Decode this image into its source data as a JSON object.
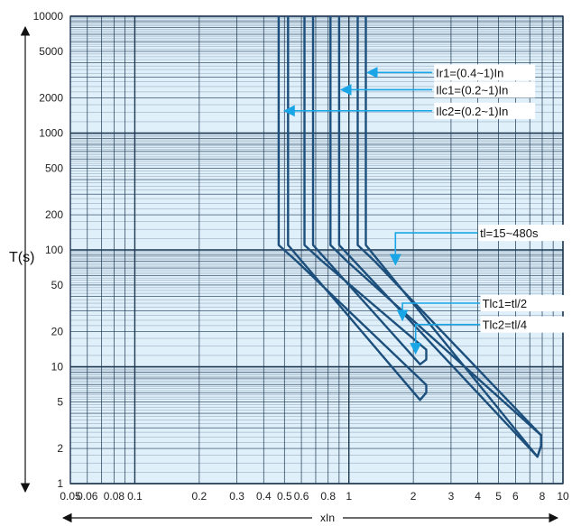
{
  "chart_data": {
    "type": "line",
    "title": "",
    "xlabel": "xIn",
    "ylabel": "T(s)",
    "x_scale": "log",
    "y_scale": "log",
    "xlim": [
      0.05,
      10
    ],
    "ylim": [
      1,
      10000
    ],
    "grid": true,
    "x_ticks": [
      {
        "v": 0.05,
        "label": "0.05"
      },
      {
        "v": 0.06,
        "label": "0.06"
      },
      {
        "v": 0.08,
        "label": "0.08"
      },
      {
        "v": 0.1,
        "label": "0.1"
      },
      {
        "v": 0.2,
        "label": "0.2"
      },
      {
        "v": 0.3,
        "label": "0.3"
      },
      {
        "v": 0.4,
        "label": "0.4"
      },
      {
        "v": 0.5,
        "label": "0.5"
      },
      {
        "v": 0.6,
        "label": "0.6"
      },
      {
        "v": 0.8,
        "label": "0.8"
      },
      {
        "v": 1,
        "label": "1"
      },
      {
        "v": 2,
        "label": "2"
      },
      {
        "v": 3,
        "label": "3"
      },
      {
        "v": 4,
        "label": "4"
      },
      {
        "v": 5,
        "label": "5"
      },
      {
        "v": 6,
        "label": "6"
      },
      {
        "v": 8,
        "label": "8"
      },
      {
        "v": 10,
        "label": "10"
      }
    ],
    "y_ticks": [
      {
        "v": 1,
        "label": "1"
      },
      {
        "v": 2,
        "label": "2"
      },
      {
        "v": 5,
        "label": "5"
      },
      {
        "v": 10,
        "label": "10"
      },
      {
        "v": 20,
        "label": "20"
      },
      {
        "v": 50,
        "label": "50"
      },
      {
        "v": 100,
        "label": "100"
      },
      {
        "v": 200,
        "label": "200"
      },
      {
        "v": 500,
        "label": "500"
      },
      {
        "v": 1000,
        "label": "1000"
      },
      {
        "v": 2000,
        "label": "2000"
      },
      {
        "v": 5000,
        "label": "5000"
      },
      {
        "v": 10000,
        "label": "10000"
      }
    ],
    "bands": [
      {
        "points": [
          [
            0.47,
            10000
          ],
          [
            0.47,
            110
          ],
          [
            0.57,
            80
          ],
          [
            2.3,
            7.0
          ],
          [
            2.3,
            6.0
          ],
          [
            2.15,
            5.2
          ],
          [
            0.52,
            110
          ],
          [
            0.52,
            10000
          ]
        ]
      },
      {
        "points": [
          [
            0.62,
            10000
          ],
          [
            0.62,
            110
          ],
          [
            0.75,
            80
          ],
          [
            2.3,
            14
          ],
          [
            2.3,
            11.5
          ],
          [
            2.15,
            10.5
          ],
          [
            0.68,
            110
          ],
          [
            0.68,
            10000
          ]
        ]
      },
      {
        "points": [
          [
            0.82,
            10000
          ],
          [
            0.82,
            110
          ],
          [
            0.98,
            80
          ],
          [
            7.9,
            2.6
          ],
          [
            7.9,
            2.1
          ],
          [
            7.6,
            1.7
          ],
          [
            0.9,
            110
          ],
          [
            0.9,
            10000
          ]
        ]
      },
      {
        "points": [
          [
            1.1,
            10000
          ],
          [
            1.1,
            110
          ],
          [
            1.32,
            80
          ],
          [
            7.9,
            2.6
          ],
          [
            7.9,
            2.1
          ],
          [
            7.6,
            1.7
          ],
          [
            1.2,
            110
          ],
          [
            1.2,
            10000
          ]
        ]
      }
    ],
    "annotations": [
      {
        "text": "Ir1=(0.4~1)In",
        "text_at": [
          2.55,
          3300
        ],
        "arrow_from": [
          2.45,
          3300
        ],
        "arrow_to": [
          1.22,
          3300
        ]
      },
      {
        "text": "Ilc1=(0.2~1)In",
        "text_at": [
          2.55,
          2350
        ],
        "arrow_from": [
          2.45,
          2350
        ],
        "arrow_to": [
          0.92,
          2350
        ]
      },
      {
        "text": "Ilc2=(0.2~1)In",
        "text_at": [
          2.55,
          1550
        ],
        "arrow_from": [
          2.45,
          1550
        ],
        "arrow_to": [
          0.5,
          1550
        ]
      },
      {
        "text": "tl=15~480s",
        "text_at": [
          4.1,
          140
        ],
        "arrow_path": [
          [
            4.0,
            140
          ],
          [
            1.65,
            140
          ],
          [
            1.65,
            75
          ]
        ]
      },
      {
        "text": "Tlc1=tl/2",
        "text_at": [
          4.2,
          35
        ],
        "arrow_path": [
          [
            4.1,
            35
          ],
          [
            1.78,
            35
          ],
          [
            1.78,
            25
          ]
        ]
      },
      {
        "text": "Tlc2=tl/4",
        "text_at": [
          4.2,
          23
        ],
        "arrow_path": [
          [
            4.1,
            23
          ],
          [
            2.05,
            23
          ],
          [
            2.05,
            13
          ]
        ]
      }
    ],
    "colors": {
      "plot_bg": "#dff0fb",
      "grid": "#1c3650",
      "band": "#1c4f7c",
      "arrow": "#1aa6e6"
    }
  }
}
